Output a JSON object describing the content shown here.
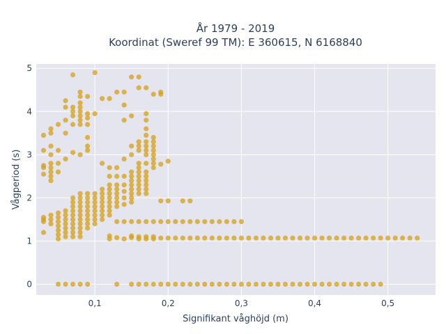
{
  "chart_data": {
    "type": "scatter",
    "title_line1": "År 1979 - 2019",
    "title_line2": "Koordinat (Sweref 99 TM): E 360615, N 6168840",
    "xlabel": "Signifikant våghöjd (m)",
    "ylabel": "Vågperiod (s)",
    "xlim": [
      0.02,
      0.565
    ],
    "ylim": [
      -0.25,
      5.1
    ],
    "x_ticks": [
      0.1,
      0.2,
      0.3,
      0.4,
      0.5
    ],
    "x_tick_labels": [
      "0,1",
      "0,2",
      "0,3",
      "0,4",
      "0,5"
    ],
    "y_ticks": [
      0,
      1,
      2,
      3,
      4,
      5
    ],
    "y_tick_labels": [
      "0",
      "1",
      "2",
      "3",
      "4",
      "5"
    ],
    "grid": true,
    "colors": {
      "marker": "#d4a017",
      "plot_bg": "#e5e5f0",
      "grid": "#ffffff",
      "text": "#2a3f5f"
    },
    "series": [
      {
        "points": [
          [
            0.05,
            0
          ],
          [
            0.06,
            0
          ],
          [
            0.07,
            0
          ],
          [
            0.08,
            0
          ],
          [
            0.09,
            0
          ],
          [
            0.13,
            0
          ],
          [
            0.15,
            0
          ],
          [
            0.16,
            0
          ],
          [
            0.17,
            0
          ],
          [
            0.18,
            0
          ],
          [
            0.19,
            0
          ],
          [
            0.2,
            0
          ],
          [
            0.21,
            0
          ],
          [
            0.22,
            0
          ],
          [
            0.23,
            0
          ],
          [
            0.24,
            0
          ],
          [
            0.25,
            0
          ],
          [
            0.26,
            0
          ],
          [
            0.27,
            0
          ],
          [
            0.28,
            0
          ],
          [
            0.29,
            0
          ],
          [
            0.3,
            0
          ],
          [
            0.31,
            0
          ],
          [
            0.32,
            0
          ],
          [
            0.33,
            0
          ],
          [
            0.34,
            0
          ],
          [
            0.35,
            0
          ],
          [
            0.36,
            0
          ],
          [
            0.37,
            0
          ],
          [
            0.38,
            0
          ],
          [
            0.39,
            0
          ],
          [
            0.4,
            0
          ],
          [
            0.41,
            0
          ],
          [
            0.42,
            0
          ],
          [
            0.43,
            0
          ],
          [
            0.44,
            0
          ],
          [
            0.45,
            0
          ],
          [
            0.46,
            0
          ],
          [
            0.47,
            0
          ],
          [
            0.48,
            0
          ],
          [
            0.49,
            0
          ],
          [
            0.12,
            1.05
          ],
          [
            0.12,
            1.12
          ],
          [
            0.13,
            1.08
          ],
          [
            0.14,
            1.05
          ],
          [
            0.15,
            1.08
          ],
          [
            0.15,
            1.12
          ],
          [
            0.16,
            1.05
          ],
          [
            0.16,
            1.1
          ],
          [
            0.17,
            1.05
          ],
          [
            0.17,
            1.1
          ],
          [
            0.18,
            1.05
          ],
          [
            0.18,
            1.1
          ],
          [
            0.19,
            1.07
          ],
          [
            0.2,
            1.07
          ],
          [
            0.21,
            1.07
          ],
          [
            0.22,
            1.07
          ],
          [
            0.23,
            1.07
          ],
          [
            0.24,
            1.07
          ],
          [
            0.25,
            1.07
          ],
          [
            0.26,
            1.07
          ],
          [
            0.27,
            1.07
          ],
          [
            0.28,
            1.07
          ],
          [
            0.29,
            1.07
          ],
          [
            0.3,
            1.07
          ],
          [
            0.31,
            1.07
          ],
          [
            0.32,
            1.07
          ],
          [
            0.33,
            1.07
          ],
          [
            0.34,
            1.07
          ],
          [
            0.35,
            1.07
          ],
          [
            0.36,
            1.07
          ],
          [
            0.37,
            1.07
          ],
          [
            0.38,
            1.07
          ],
          [
            0.39,
            1.07
          ],
          [
            0.4,
            1.07
          ],
          [
            0.41,
            1.07
          ],
          [
            0.42,
            1.07
          ],
          [
            0.43,
            1.07
          ],
          [
            0.44,
            1.07
          ],
          [
            0.45,
            1.07
          ],
          [
            0.46,
            1.07
          ],
          [
            0.47,
            1.07
          ],
          [
            0.48,
            1.07
          ],
          [
            0.49,
            1.07
          ],
          [
            0.5,
            1.07
          ],
          [
            0.51,
            1.07
          ],
          [
            0.52,
            1.07
          ],
          [
            0.53,
            1.07
          ],
          [
            0.54,
            1.07
          ],
          [
            0.13,
            1.45
          ],
          [
            0.14,
            1.45
          ],
          [
            0.15,
            1.45
          ],
          [
            0.16,
            1.45
          ],
          [
            0.17,
            1.45
          ],
          [
            0.18,
            1.45
          ],
          [
            0.19,
            1.45
          ],
          [
            0.2,
            1.45
          ],
          [
            0.21,
            1.45
          ],
          [
            0.22,
            1.45
          ],
          [
            0.23,
            1.45
          ],
          [
            0.24,
            1.45
          ],
          [
            0.25,
            1.45
          ],
          [
            0.26,
            1.45
          ],
          [
            0.27,
            1.45
          ],
          [
            0.28,
            1.45
          ],
          [
            0.29,
            1.45
          ],
          [
            0.3,
            1.45
          ],
          [
            0.19,
            1.93
          ],
          [
            0.2,
            1.93
          ],
          [
            0.22,
            1.93
          ],
          [
            0.23,
            1.93
          ],
          [
            0.2,
            2.85
          ],
          [
            0.19,
            2.78
          ],
          [
            0.03,
            1.2
          ],
          [
            0.03,
            1.45
          ],
          [
            0.03,
            1.5
          ],
          [
            0.03,
            1.55
          ],
          [
            0.03,
            2.55
          ],
          [
            0.03,
            2.7
          ],
          [
            0.03,
            2.75
          ],
          [
            0.03,
            3.1
          ],
          [
            0.03,
            3.45
          ],
          [
            0.04,
            1.4
          ],
          [
            0.04,
            1.5
          ],
          [
            0.04,
            1.6
          ],
          [
            0.04,
            2.4
          ],
          [
            0.04,
            2.5
          ],
          [
            0.04,
            2.6
          ],
          [
            0.04,
            2.7
          ],
          [
            0.04,
            2.8
          ],
          [
            0.04,
            3.0
          ],
          [
            0.04,
            3.2
          ],
          [
            0.04,
            3.5
          ],
          [
            0.04,
            3.6
          ],
          [
            0.05,
            1.05
          ],
          [
            0.05,
            1.15
          ],
          [
            0.05,
            1.25
          ],
          [
            0.05,
            1.35
          ],
          [
            0.05,
            1.45
          ],
          [
            0.05,
            1.55
          ],
          [
            0.05,
            1.65
          ],
          [
            0.05,
            2.6
          ],
          [
            0.05,
            2.8
          ],
          [
            0.05,
            3.1
          ],
          [
            0.05,
            3.7
          ],
          [
            0.06,
            1.1
          ],
          [
            0.06,
            1.2
          ],
          [
            0.06,
            1.3
          ],
          [
            0.06,
            1.4
          ],
          [
            0.06,
            1.5
          ],
          [
            0.06,
            1.6
          ],
          [
            0.06,
            1.7
          ],
          [
            0.06,
            2.9
          ],
          [
            0.06,
            3.5
          ],
          [
            0.06,
            3.8
          ],
          [
            0.06,
            4.1
          ],
          [
            0.06,
            4.25
          ],
          [
            0.07,
            1.1
          ],
          [
            0.07,
            1.2
          ],
          [
            0.07,
            1.3
          ],
          [
            0.07,
            1.4
          ],
          [
            0.07,
            1.5
          ],
          [
            0.07,
            1.6
          ],
          [
            0.07,
            1.7
          ],
          [
            0.07,
            1.8
          ],
          [
            0.07,
            1.9
          ],
          [
            0.07,
            2.0
          ],
          [
            0.07,
            3.05
          ],
          [
            0.07,
            3.7
          ],
          [
            0.07,
            3.9
          ],
          [
            0.07,
            4.0
          ],
          [
            0.07,
            4.1
          ],
          [
            0.07,
            4.85
          ],
          [
            0.08,
            1.1
          ],
          [
            0.08,
            1.2
          ],
          [
            0.08,
            1.3
          ],
          [
            0.08,
            1.4
          ],
          [
            0.08,
            1.5
          ],
          [
            0.08,
            1.6
          ],
          [
            0.08,
            1.7
          ],
          [
            0.08,
            1.8
          ],
          [
            0.08,
            1.9
          ],
          [
            0.08,
            2.0
          ],
          [
            0.08,
            2.1
          ],
          [
            0.08,
            3.0
          ],
          [
            0.08,
            3.7
          ],
          [
            0.08,
            3.8
          ],
          [
            0.08,
            3.9
          ],
          [
            0.08,
            4.0
          ],
          [
            0.08,
            4.1
          ],
          [
            0.08,
            4.2
          ],
          [
            0.08,
            4.35
          ],
          [
            0.08,
            4.45
          ],
          [
            0.09,
            1.3
          ],
          [
            0.09,
            1.4
          ],
          [
            0.09,
            1.5
          ],
          [
            0.09,
            1.6
          ],
          [
            0.09,
            1.7
          ],
          [
            0.09,
            1.8
          ],
          [
            0.09,
            1.9
          ],
          [
            0.09,
            2.0
          ],
          [
            0.09,
            2.1
          ],
          [
            0.09,
            3.1
          ],
          [
            0.09,
            3.2
          ],
          [
            0.09,
            3.4
          ],
          [
            0.09,
            3.7
          ],
          [
            0.09,
            3.85
          ],
          [
            0.09,
            3.95
          ],
          [
            0.09,
            4.35
          ],
          [
            0.1,
            1.4
          ],
          [
            0.1,
            1.5
          ],
          [
            0.1,
            1.6
          ],
          [
            0.1,
            1.7
          ],
          [
            0.1,
            1.8
          ],
          [
            0.1,
            1.9
          ],
          [
            0.1,
            2.0
          ],
          [
            0.1,
            2.1
          ],
          [
            0.1,
            3.95
          ],
          [
            0.1,
            4.9
          ],
          [
            0.11,
            1.5
          ],
          [
            0.11,
            1.6
          ],
          [
            0.11,
            1.7
          ],
          [
            0.11,
            1.8
          ],
          [
            0.11,
            1.9
          ],
          [
            0.11,
            2.0
          ],
          [
            0.11,
            2.1
          ],
          [
            0.11,
            2.2
          ],
          [
            0.11,
            2.8
          ],
          [
            0.11,
            4.3
          ],
          [
            0.12,
            1.6
          ],
          [
            0.12,
            1.7
          ],
          [
            0.12,
            1.8
          ],
          [
            0.12,
            1.9
          ],
          [
            0.12,
            2.0
          ],
          [
            0.12,
            2.1
          ],
          [
            0.12,
            2.2
          ],
          [
            0.12,
            2.3
          ],
          [
            0.12,
            2.5
          ],
          [
            0.12,
            2.7
          ],
          [
            0.12,
            4.3
          ],
          [
            0.13,
            1.8
          ],
          [
            0.13,
            1.9
          ],
          [
            0.13,
            2.0
          ],
          [
            0.13,
            2.1
          ],
          [
            0.13,
            2.2
          ],
          [
            0.13,
            2.3
          ],
          [
            0.13,
            2.5
          ],
          [
            0.13,
            2.7
          ],
          [
            0.13,
            4.45
          ],
          [
            0.14,
            1.85
          ],
          [
            0.14,
            2.0
          ],
          [
            0.14,
            2.15
          ],
          [
            0.14,
            2.3
          ],
          [
            0.14,
            2.5
          ],
          [
            0.14,
            2.9
          ],
          [
            0.14,
            3.8
          ],
          [
            0.14,
            4.15
          ],
          [
            0.14,
            4.45
          ],
          [
            0.15,
            1.9
          ],
          [
            0.15,
            2.0
          ],
          [
            0.15,
            2.1
          ],
          [
            0.15,
            2.2
          ],
          [
            0.15,
            2.3
          ],
          [
            0.15,
            2.4
          ],
          [
            0.15,
            2.5
          ],
          [
            0.15,
            2.6
          ],
          [
            0.15,
            3.0
          ],
          [
            0.15,
            3.2
          ],
          [
            0.15,
            3.9
          ],
          [
            0.15,
            4.8
          ],
          [
            0.16,
            2.1
          ],
          [
            0.16,
            2.2
          ],
          [
            0.16,
            2.3
          ],
          [
            0.16,
            2.4
          ],
          [
            0.16,
            2.5
          ],
          [
            0.16,
            2.6
          ],
          [
            0.16,
            2.7
          ],
          [
            0.16,
            2.8
          ],
          [
            0.16,
            3.1
          ],
          [
            0.16,
            3.2
          ],
          [
            0.16,
            3.3
          ],
          [
            0.16,
            4.55
          ],
          [
            0.16,
            4.8
          ],
          [
            0.17,
            2.1
          ],
          [
            0.17,
            2.2
          ],
          [
            0.17,
            2.3
          ],
          [
            0.17,
            2.4
          ],
          [
            0.17,
            2.5
          ],
          [
            0.17,
            2.6
          ],
          [
            0.17,
            2.8
          ],
          [
            0.17,
            3.0
          ],
          [
            0.17,
            3.1
          ],
          [
            0.17,
            3.2
          ],
          [
            0.17,
            3.3
          ],
          [
            0.17,
            3.45
          ],
          [
            0.17,
            3.6
          ],
          [
            0.17,
            3.8
          ],
          [
            0.17,
            3.95
          ],
          [
            0.17,
            4.55
          ],
          [
            0.18,
            2.7
          ],
          [
            0.18,
            2.8
          ],
          [
            0.18,
            2.9
          ],
          [
            0.18,
            3.0
          ],
          [
            0.18,
            3.1
          ],
          [
            0.18,
            3.2
          ],
          [
            0.18,
            3.3
          ],
          [
            0.18,
            3.4
          ],
          [
            0.18,
            4.4
          ],
          [
            0.19,
            4.45
          ],
          [
            0.19,
            4.4
          ]
        ]
      }
    ]
  }
}
